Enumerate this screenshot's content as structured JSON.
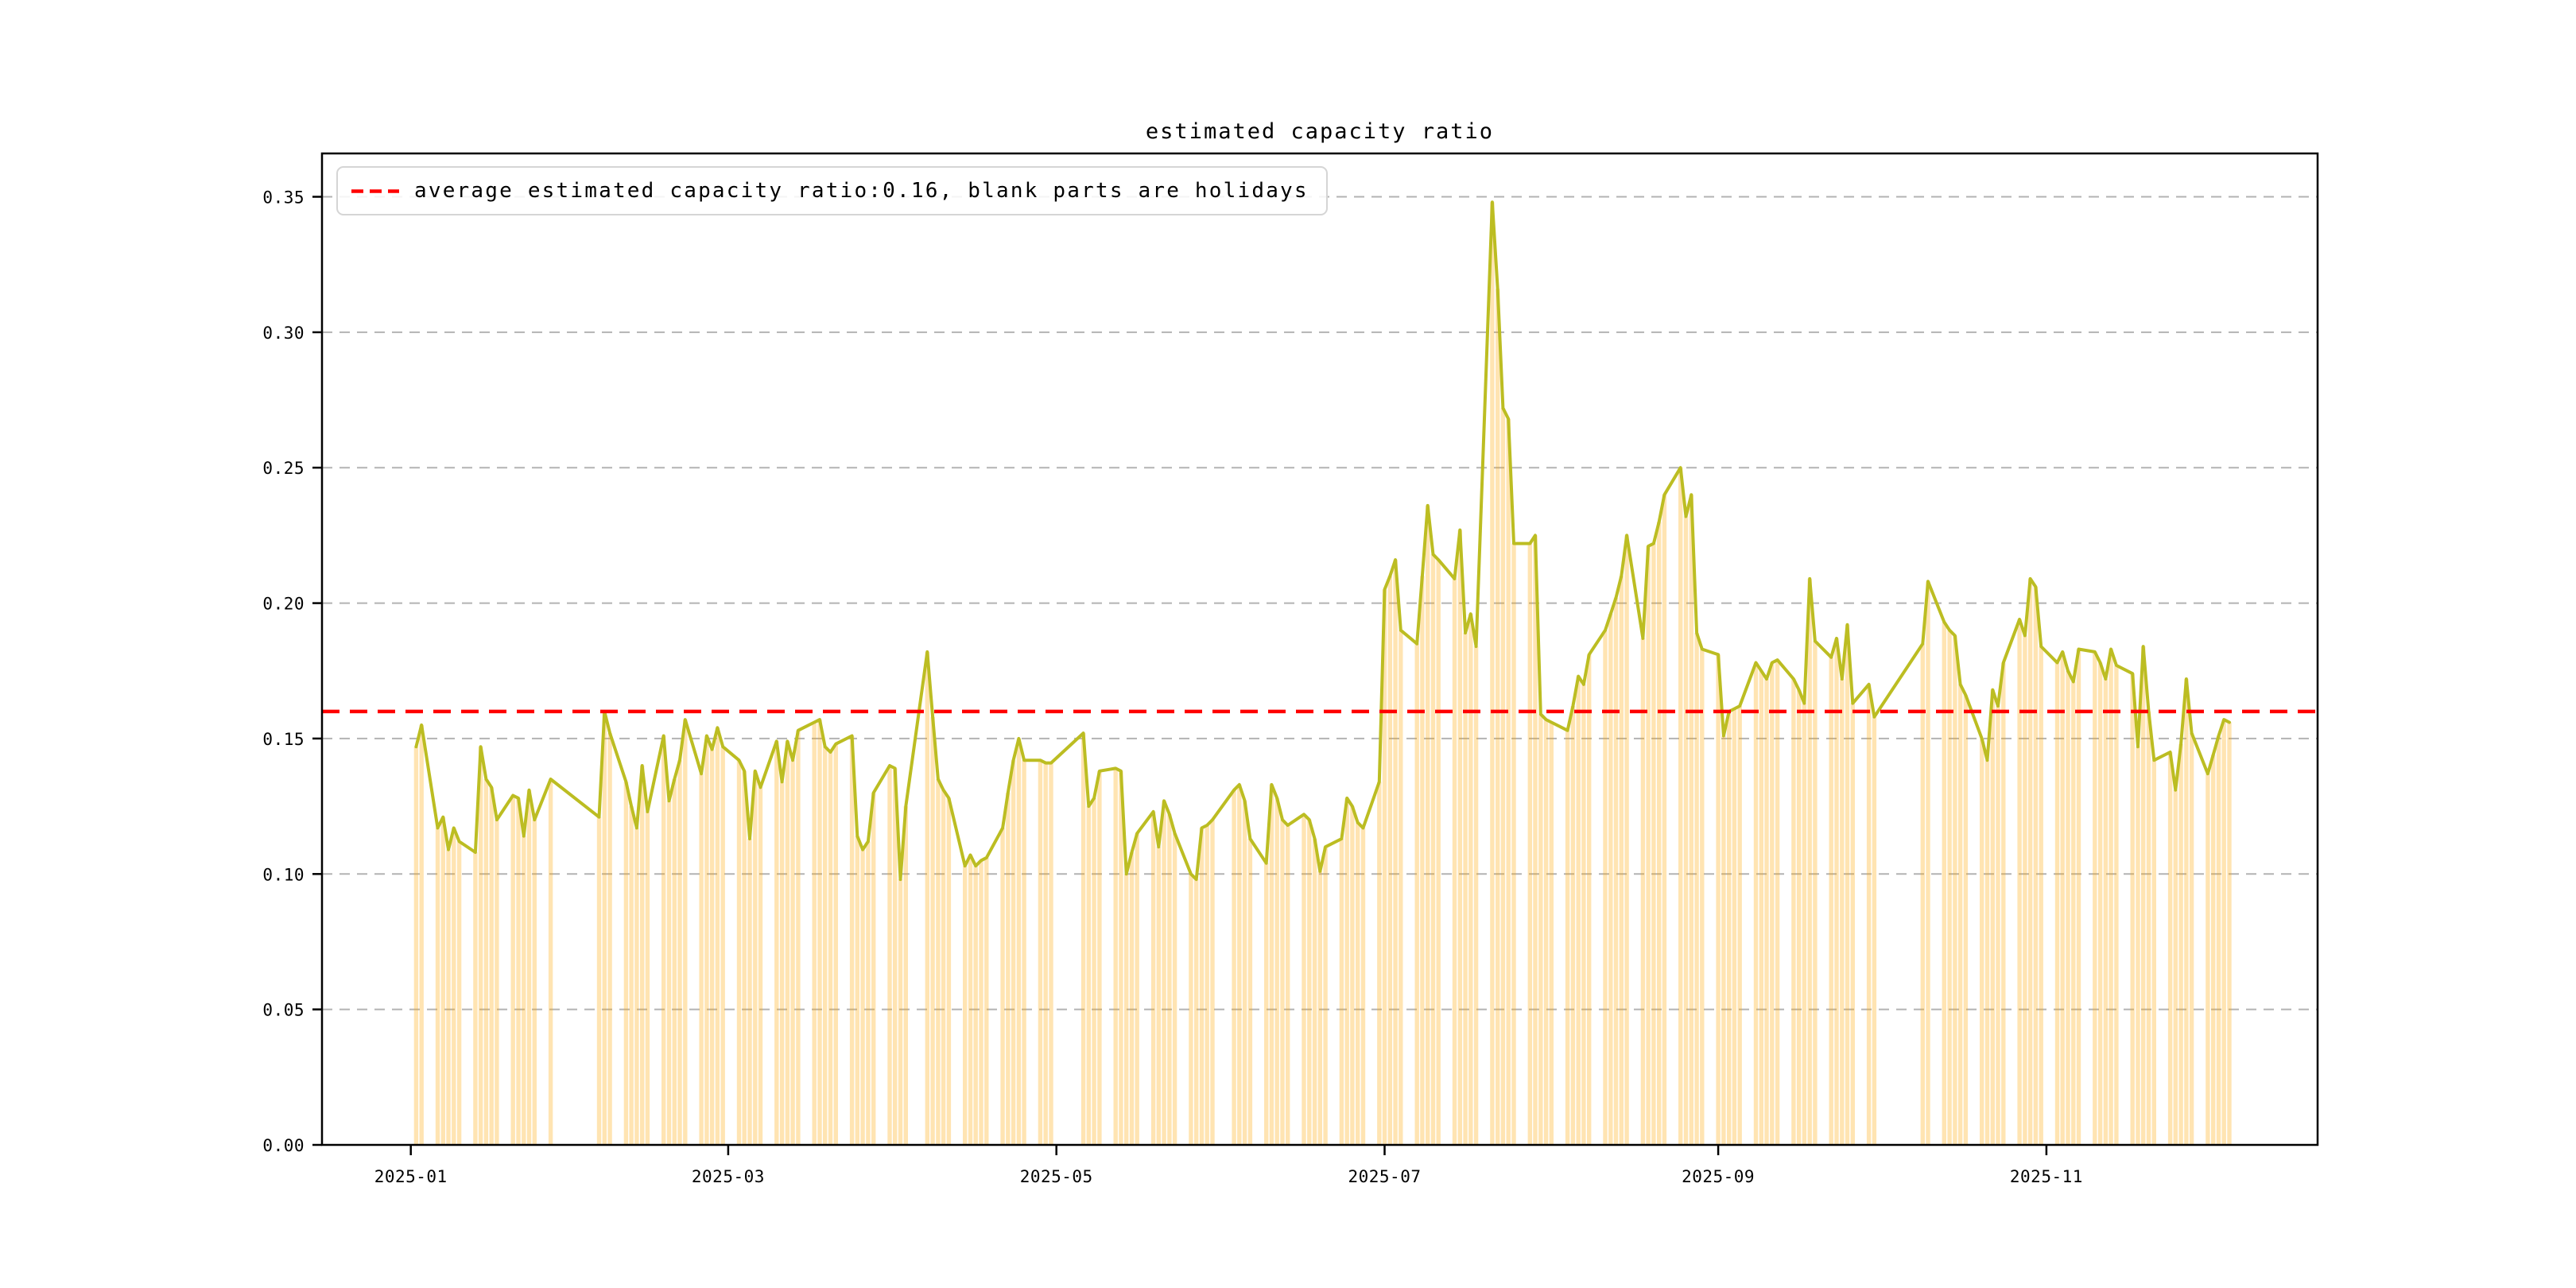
{
  "title": "estimated capacity ratio",
  "legend": {
    "label": "average estimated capacity ratio:0.16, blank parts are holidays"
  },
  "colors": {
    "series_line": "#bcbd22",
    "day_fill": "#ffa500",
    "day_fill_opacity": 0.3,
    "average_line": "#ff0000",
    "grid": "#b3b3b3",
    "axis": "#000000",
    "text": "#000000",
    "legend_border": "#d5d5d5"
  },
  "chart_data": {
    "type": "area",
    "title": "estimated capacity ratio",
    "xlabel": "",
    "ylabel": "",
    "average_estimated_capacity_ratio": 0.16,
    "note": "blank parts are holidays",
    "grid": true,
    "legend_position": "upper left",
    "ylim": [
      0,
      0.366
    ],
    "yticks": [
      0,
      0.05,
      0.1,
      0.15,
      0.2,
      0.25,
      0.3,
      0.35
    ],
    "xticks": [
      "2025-01",
      "2025-03",
      "2025-05",
      "2025-07",
      "2025-09",
      "2025-11"
    ],
    "x_range_days_from_2025_01_01": [
      -16.5,
      354.4
    ],
    "series": [
      {
        "name": "estimated capacity ratio",
        "dates": [
          "2025-01-02",
          "2025-01-03",
          "2025-01-06",
          "2025-01-07",
          "2025-01-08",
          "2025-01-09",
          "2025-01-10",
          "2025-01-13",
          "2025-01-14",
          "2025-01-15",
          "2025-01-16",
          "2025-01-17",
          "2025-01-20",
          "2025-01-21",
          "2025-01-22",
          "2025-01-23",
          "2025-01-24",
          "2025-01-27",
          "2025-02-05",
          "2025-02-06",
          "2025-02-07",
          "2025-02-10",
          "2025-02-11",
          "2025-02-12",
          "2025-02-13",
          "2025-02-14",
          "2025-02-17",
          "2025-02-18",
          "2025-02-19",
          "2025-02-20",
          "2025-02-21",
          "2025-02-24",
          "2025-02-25",
          "2025-02-26",
          "2025-02-27",
          "2025-02-28",
          "2025-03-03",
          "2025-03-04",
          "2025-03-05",
          "2025-03-06",
          "2025-03-07",
          "2025-03-10",
          "2025-03-11",
          "2025-03-12",
          "2025-03-13",
          "2025-03-14",
          "2025-03-17",
          "2025-03-18",
          "2025-03-19",
          "2025-03-20",
          "2025-03-21",
          "2025-03-24",
          "2025-03-25",
          "2025-03-26",
          "2025-03-27",
          "2025-03-28",
          "2025-03-31",
          "2025-04-01",
          "2025-04-02",
          "2025-04-03",
          "2025-04-07",
          "2025-04-08",
          "2025-04-09",
          "2025-04-10",
          "2025-04-11",
          "2025-04-14",
          "2025-04-15",
          "2025-04-16",
          "2025-04-17",
          "2025-04-18",
          "2025-04-21",
          "2025-04-22",
          "2025-04-23",
          "2025-04-24",
          "2025-04-25",
          "2025-04-28",
          "2025-04-29",
          "2025-04-30",
          "2025-05-06",
          "2025-05-07",
          "2025-05-08",
          "2025-05-09",
          "2025-05-12",
          "2025-05-13",
          "2025-05-14",
          "2025-05-15",
          "2025-05-16",
          "2025-05-19",
          "2025-05-20",
          "2025-05-21",
          "2025-05-22",
          "2025-05-23",
          "2025-05-26",
          "2025-05-27",
          "2025-05-28",
          "2025-05-29",
          "2025-05-30",
          "2025-06-03",
          "2025-06-04",
          "2025-06-05",
          "2025-06-06",
          "2025-06-09",
          "2025-06-10",
          "2025-06-11",
          "2025-06-12",
          "2025-06-13",
          "2025-06-16",
          "2025-06-17",
          "2025-06-18",
          "2025-06-19",
          "2025-06-20",
          "2025-06-23",
          "2025-06-24",
          "2025-06-25",
          "2025-06-26",
          "2025-06-27",
          "2025-06-30",
          "2025-07-01",
          "2025-07-02",
          "2025-07-03",
          "2025-07-04",
          "2025-07-07",
          "2025-07-08",
          "2025-07-09",
          "2025-07-10",
          "2025-07-11",
          "2025-07-14",
          "2025-07-15",
          "2025-07-16",
          "2025-07-17",
          "2025-07-18",
          "2025-07-21",
          "2025-07-22",
          "2025-07-23",
          "2025-07-24",
          "2025-07-25",
          "2025-07-28",
          "2025-07-29",
          "2025-07-30",
          "2025-07-31",
          "2025-08-01",
          "2025-08-04",
          "2025-08-05",
          "2025-08-06",
          "2025-08-07",
          "2025-08-08",
          "2025-08-11",
          "2025-08-12",
          "2025-08-13",
          "2025-08-14",
          "2025-08-15",
          "2025-08-18",
          "2025-08-19",
          "2025-08-20",
          "2025-08-21",
          "2025-08-22",
          "2025-08-25",
          "2025-08-26",
          "2025-08-27",
          "2025-08-28",
          "2025-08-29",
          "2025-09-01",
          "2025-09-02",
          "2025-09-03",
          "2025-09-04",
          "2025-09-05",
          "2025-09-08",
          "2025-09-09",
          "2025-09-10",
          "2025-09-11",
          "2025-09-12",
          "2025-09-15",
          "2025-09-16",
          "2025-09-17",
          "2025-09-18",
          "2025-09-19",
          "2025-09-22",
          "2025-09-23",
          "2025-09-24",
          "2025-09-25",
          "2025-09-26",
          "2025-09-29",
          "2025-09-30",
          "2025-10-09",
          "2025-10-10",
          "2025-10-13",
          "2025-10-14",
          "2025-10-15",
          "2025-10-16",
          "2025-10-17",
          "2025-10-20",
          "2025-10-21",
          "2025-10-22",
          "2025-10-23",
          "2025-10-24",
          "2025-10-27",
          "2025-10-28",
          "2025-10-29",
          "2025-10-30",
          "2025-10-31",
          "2025-11-03",
          "2025-11-04",
          "2025-11-05",
          "2025-11-06",
          "2025-11-07",
          "2025-11-10",
          "2025-11-11",
          "2025-11-12",
          "2025-11-13",
          "2025-11-14",
          "2025-11-17",
          "2025-11-18",
          "2025-11-19",
          "2025-11-20",
          "2025-11-21",
          "2025-11-24",
          "2025-11-25",
          "2025-11-26",
          "2025-11-27",
          "2025-11-28",
          "2025-12-01",
          "2025-12-02",
          "2025-12-03",
          "2025-12-04",
          "2025-12-05"
        ],
        "values": [
          0.147,
          0.155,
          0.117,
          0.121,
          0.109,
          0.117,
          0.112,
          0.108,
          0.147,
          0.135,
          0.132,
          0.12,
          0.129,
          0.128,
          0.114,
          0.131,
          0.12,
          0.135,
          0.121,
          0.16,
          0.152,
          0.134,
          0.125,
          0.117,
          0.14,
          0.123,
          0.151,
          0.127,
          0.135,
          0.142,
          0.157,
          0.137,
          0.151,
          0.146,
          0.154,
          0.147,
          0.142,
          0.138,
          0.113,
          0.138,
          0.132,
          0.149,
          0.134,
          0.149,
          0.142,
          0.153,
          0.156,
          0.157,
          0.147,
          0.145,
          0.148,
          0.151,
          0.114,
          0.109,
          0.112,
          0.13,
          0.14,
          0.139,
          0.098,
          0.125,
          0.182,
          0.158,
          0.135,
          0.131,
          0.128,
          0.103,
          0.107,
          0.103,
          0.105,
          0.106,
          0.117,
          0.13,
          0.142,
          0.15,
          0.142,
          0.142,
          0.141,
          0.141,
          0.152,
          0.125,
          0.128,
          0.138,
          0.139,
          0.138,
          0.1,
          0.108,
          0.115,
          0.123,
          0.11,
          0.127,
          0.122,
          0.115,
          0.1,
          0.098,
          0.117,
          0.118,
          0.12,
          0.131,
          0.133,
          0.127,
          0.113,
          0.104,
          0.133,
          0.128,
          0.12,
          0.118,
          0.122,
          0.12,
          0.113,
          0.101,
          0.11,
          0.113,
          0.128,
          0.125,
          0.119,
          0.117,
          0.134,
          0.205,
          0.21,
          0.216,
          0.19,
          0.185,
          0.21,
          0.236,
          0.218,
          0.216,
          0.209,
          0.227,
          0.189,
          0.196,
          0.184,
          0.348,
          0.316,
          0.272,
          0.268,
          0.222,
          0.222,
          0.225,
          0.159,
          0.157,
          0.156,
          0.153,
          0.162,
          0.173,
          0.17,
          0.181,
          0.19,
          0.196,
          0.202,
          0.21,
          0.225,
          0.187,
          0.221,
          0.222,
          0.23,
          0.24,
          0.25,
          0.232,
          0.24,
          0.189,
          0.183,
          0.181,
          0.151,
          0.16,
          0.161,
          0.162,
          0.178,
          0.175,
          0.172,
          0.178,
          0.179,
          0.172,
          0.168,
          0.163,
          0.209,
          0.186,
          0.18,
          0.187,
          0.172,
          0.192,
          0.163,
          0.17,
          0.158,
          0.185,
          0.208,
          0.193,
          0.19,
          0.188,
          0.17,
          0.166,
          0.15,
          0.142,
          0.168,
          0.162,
          0.178,
          0.194,
          0.188,
          0.209,
          0.206,
          0.184,
          0.178,
          0.182,
          0.175,
          0.171,
          0.183,
          0.182,
          0.178,
          0.172,
          0.183,
          0.177,
          0.174,
          0.147,
          0.184,
          0.16,
          0.142,
          0.145,
          0.131,
          0.148,
          0.172,
          0.152,
          0.137,
          0.144,
          0.151,
          0.157,
          0.156
        ]
      }
    ]
  }
}
